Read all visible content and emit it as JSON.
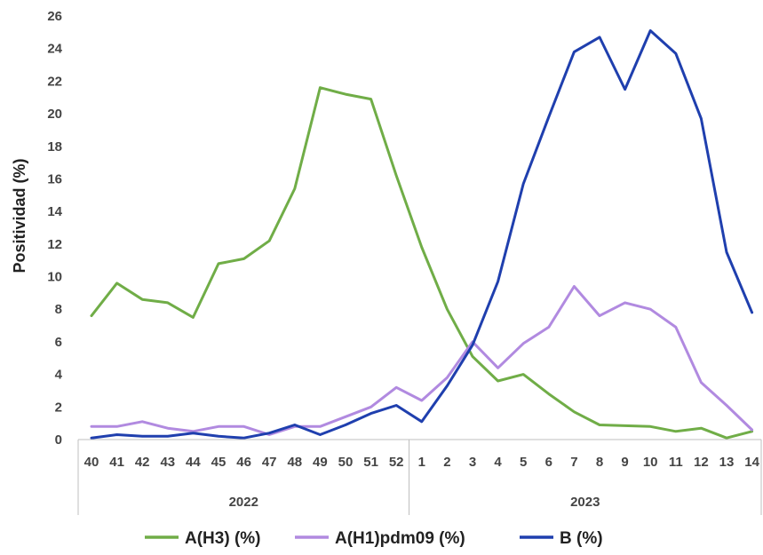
{
  "chart_data": {
    "type": "line",
    "ylabel": "Positividad (%)",
    "xlabel": "",
    "ylim": [
      0,
      26
    ],
    "yticks": [
      0,
      2,
      4,
      6,
      8,
      10,
      12,
      14,
      16,
      18,
      20,
      22,
      24,
      26
    ],
    "grid": false,
    "legend_position": "bottom",
    "x_groups": [
      {
        "label": "2022",
        "categories": [
          "40",
          "41",
          "42",
          "43",
          "44",
          "45",
          "46",
          "47",
          "48",
          "49",
          "50",
          "51",
          "52"
        ]
      },
      {
        "label": "2023",
        "categories": [
          "1",
          "2",
          "3",
          "4",
          "5",
          "6",
          "7",
          "8",
          "9",
          "10",
          "11",
          "12",
          "13",
          "14"
        ]
      }
    ],
    "categories": [
      "40",
      "41",
      "42",
      "43",
      "44",
      "45",
      "46",
      "47",
      "48",
      "49",
      "50",
      "51",
      "52",
      "1",
      "2",
      "3",
      "4",
      "5",
      "6",
      "7",
      "8",
      "9",
      "10",
      "11",
      "12",
      "13",
      "14"
    ],
    "series": [
      {
        "name": "A(H3) (%)",
        "color": "#70ad47",
        "values": [
          7.6,
          9.6,
          8.6,
          8.4,
          7.5,
          10.8,
          11.1,
          12.2,
          15.4,
          21.6,
          21.2,
          20.9,
          16.2,
          11.8,
          8.0,
          5.1,
          3.6,
          4.0,
          2.8,
          1.7,
          0.9,
          0.85,
          0.8,
          0.5,
          0.7,
          0.1,
          0.5
        ]
      },
      {
        "name": "A(H1)pdm09 (%)",
        "color": "#b18ae0",
        "values": [
          0.8,
          0.8,
          1.1,
          0.7,
          0.5,
          0.8,
          0.8,
          0.3,
          0.8,
          0.8,
          1.4,
          2.0,
          3.2,
          2.4,
          3.8,
          6.0,
          4.4,
          5.9,
          6.9,
          9.4,
          7.6,
          8.4,
          8.0,
          6.9,
          3.5,
          2.1,
          0.6
        ]
      },
      {
        "name": "B (%)",
        "color": "#1f3fae",
        "values": [
          0.1,
          0.3,
          0.2,
          0.2,
          0.4,
          0.2,
          0.1,
          0.4,
          0.9,
          0.3,
          0.9,
          1.6,
          2.1,
          1.1,
          3.3,
          5.8,
          9.7,
          15.7,
          19.8,
          23.8,
          24.7,
          21.5,
          25.1,
          23.7,
          19.7,
          11.5,
          7.8
        ]
      }
    ]
  }
}
